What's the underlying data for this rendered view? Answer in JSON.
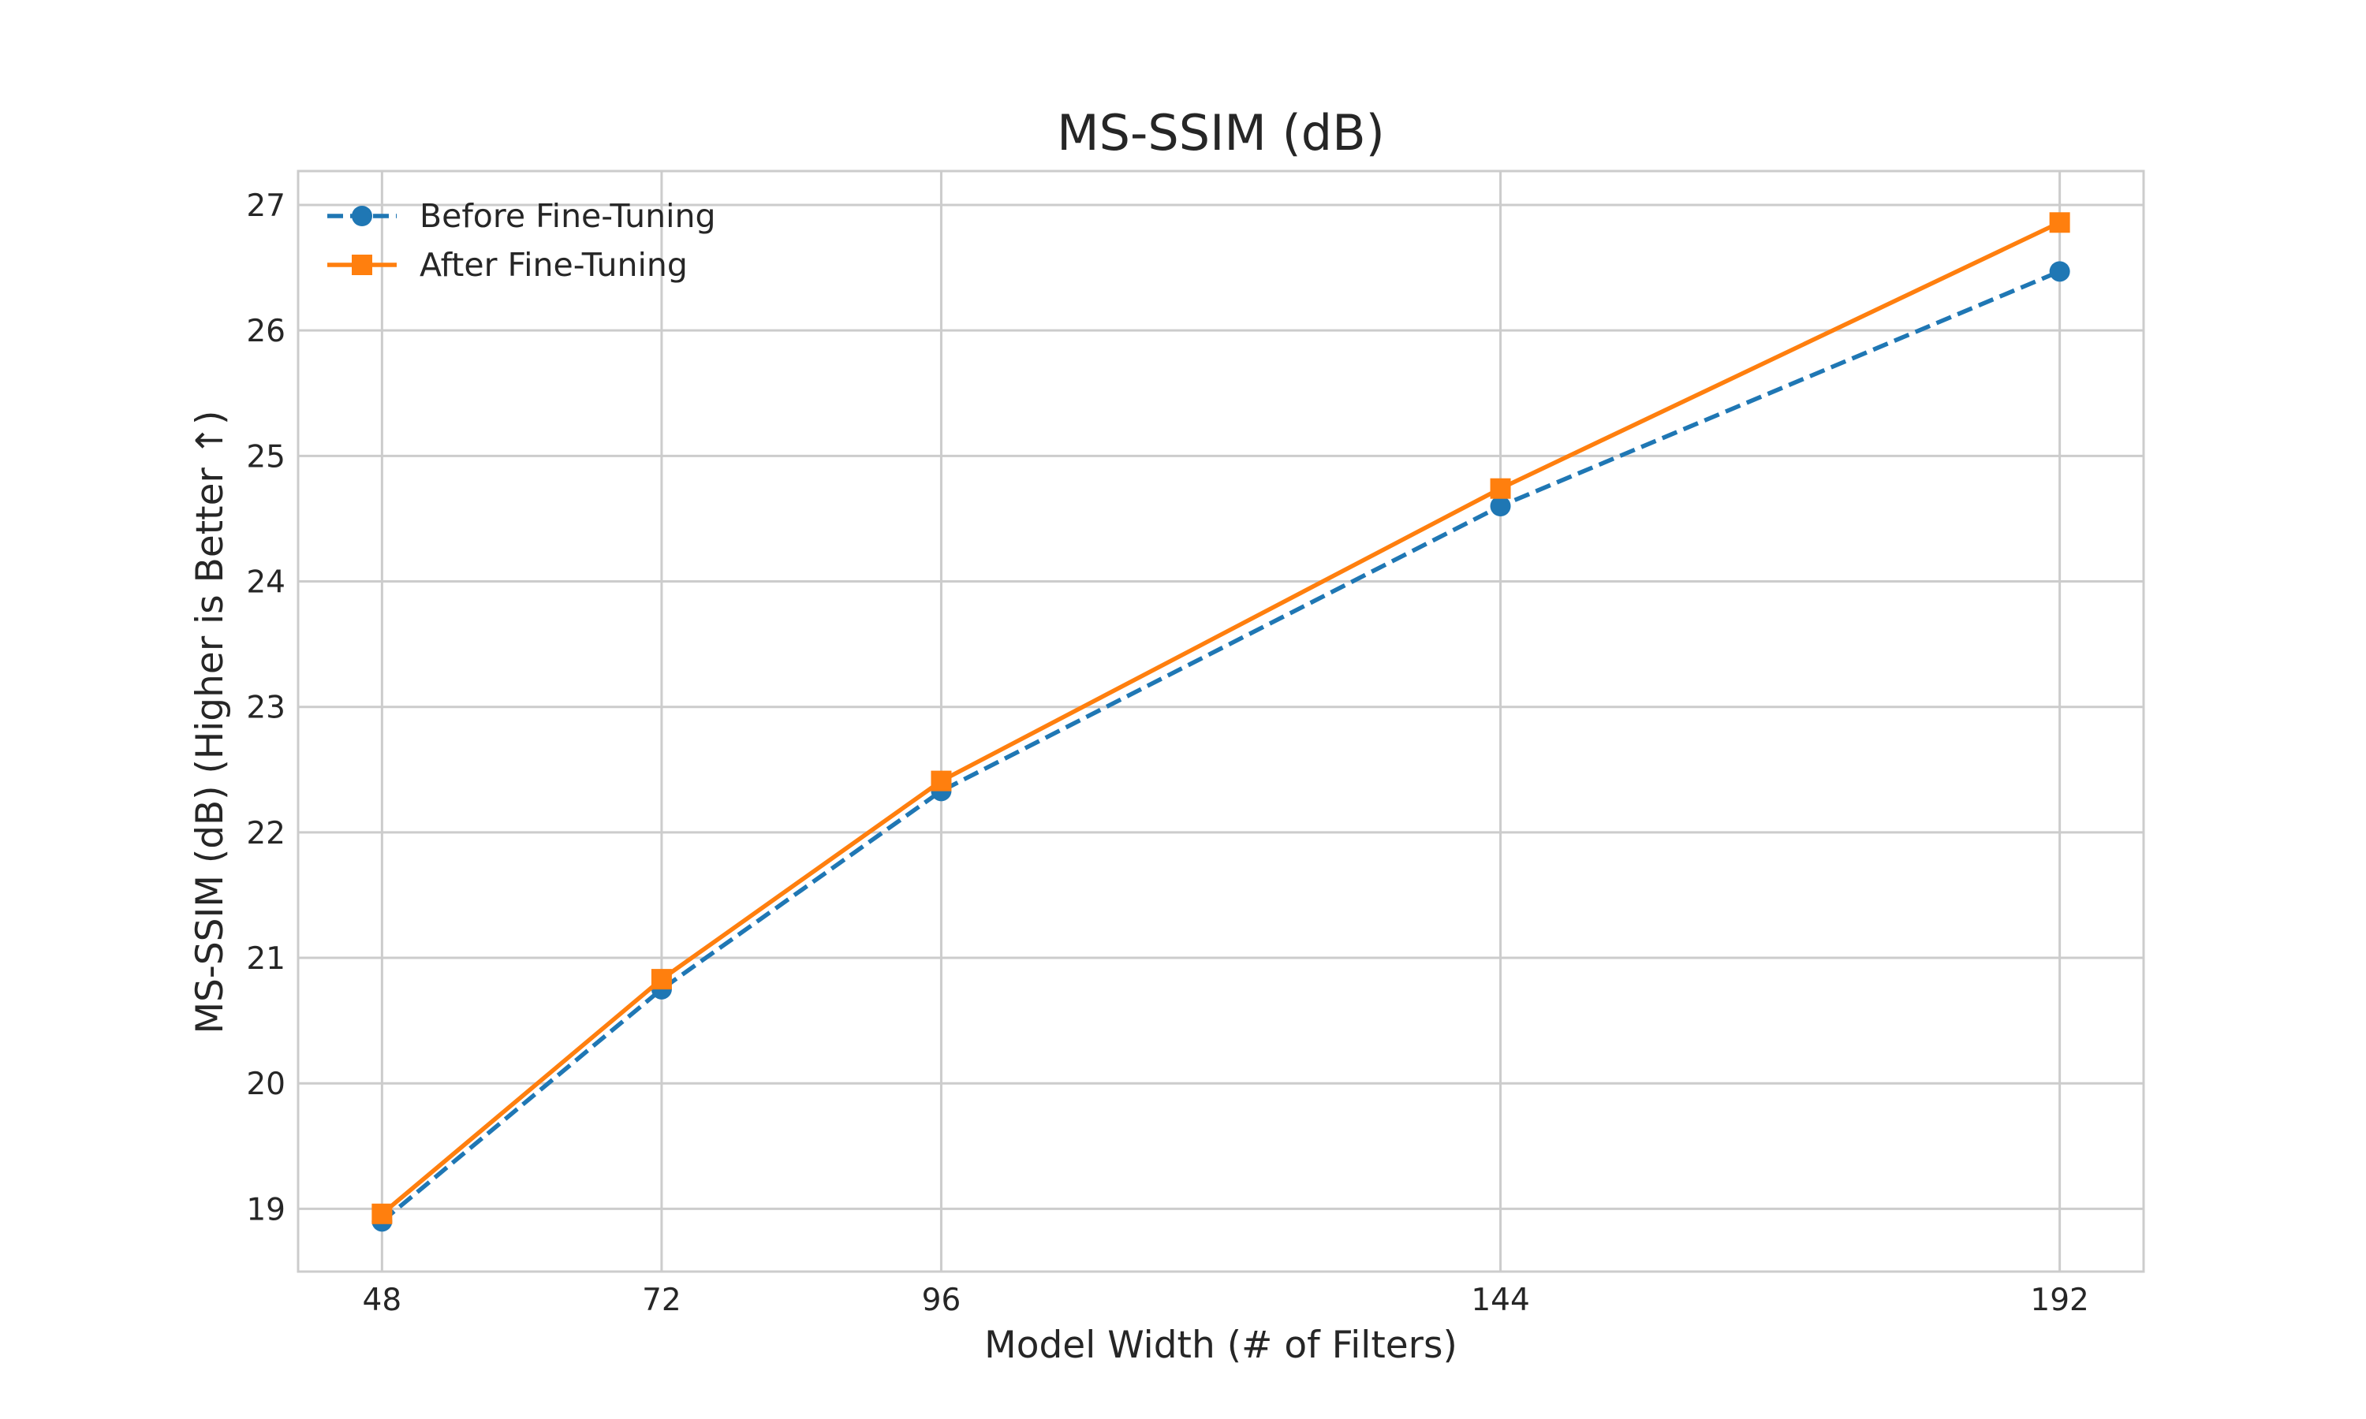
{
  "chart_data": {
    "type": "line",
    "title": "MS-SSIM (dB)",
    "xlabel": "Model Width (# of Filters)",
    "ylabel": "MS-SSIM (dB) (Higher is Better ↑)",
    "x": [
      48,
      72,
      96,
      144,
      192
    ],
    "x_tick_labels": [
      "48",
      "72",
      "96",
      "144",
      "192"
    ],
    "y_ticks": [
      19,
      20,
      21,
      22,
      23,
      24,
      25,
      26,
      27
    ],
    "y_tick_labels": [
      "19",
      "20",
      "21",
      "22",
      "23",
      "24",
      "25",
      "26",
      "27"
    ],
    "xlim": [
      40.8,
      199.2
    ],
    "ylim": [
      18.5,
      27.27
    ],
    "grid": true,
    "legend_position": "upper-left",
    "series": [
      {
        "name": "Before Fine-Tuning",
        "values": [
          18.9,
          20.75,
          22.33,
          24.6,
          26.47
        ],
        "color": "#1f77b4",
        "line_style": "dashed",
        "marker": "circle"
      },
      {
        "name": "After Fine-Tuning",
        "values": [
          18.96,
          20.83,
          22.41,
          24.74,
          26.86
        ],
        "color": "#ff7f0e",
        "line_style": "solid",
        "marker": "square"
      }
    ]
  }
}
